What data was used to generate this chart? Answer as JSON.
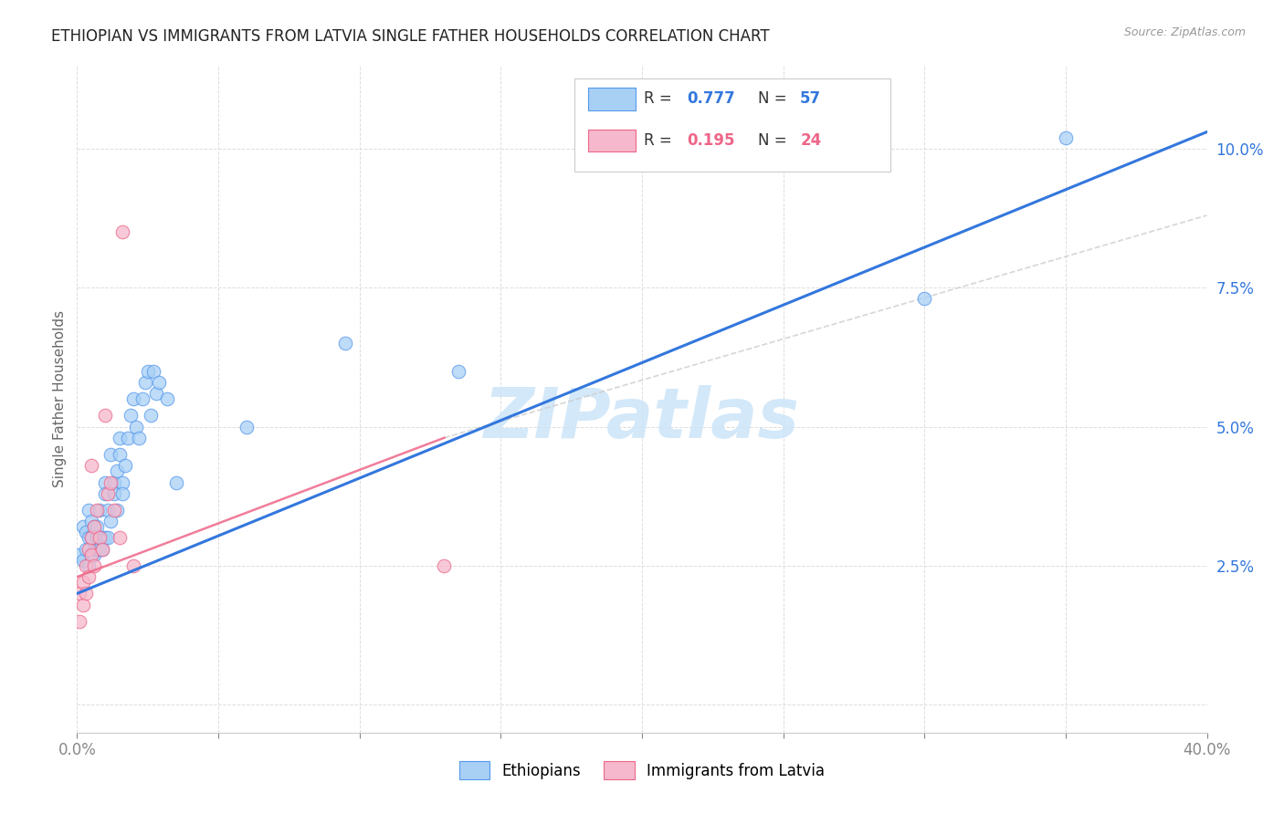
{
  "title": "ETHIOPIAN VS IMMIGRANTS FROM LATVIA SINGLE FATHER HOUSEHOLDS CORRELATION CHART",
  "source": "Source: ZipAtlas.com",
  "ylabel": "Single Father Households",
  "xlim": [
    0.0,
    0.4
  ],
  "ylim": [
    -0.005,
    0.115
  ],
  "xtick_positions": [
    0.0,
    0.05,
    0.1,
    0.15,
    0.2,
    0.25,
    0.3,
    0.35,
    0.4
  ],
  "xtick_labels": [
    "0.0%",
    "",
    "",
    "",
    "",
    "",
    "",
    "",
    "40.0%"
  ],
  "ytick_positions": [
    0.0,
    0.025,
    0.05,
    0.075,
    0.1
  ],
  "ytick_labels": [
    "",
    "2.5%",
    "5.0%",
    "7.5%",
    "10.0%"
  ],
  "blue_color": "#a8d0f5",
  "pink_color": "#f5b8cc",
  "blue_edge_color": "#5599ee",
  "pink_edge_color": "#ee6688",
  "blue_line_color": "#3377dd",
  "pink_line_color": "#ee6688",
  "gray_dash_color": "#cccccc",
  "watermark_color": "#cce5f8",
  "blue_scatter_x": [
    0.001,
    0.002,
    0.002,
    0.003,
    0.003,
    0.004,
    0.004,
    0.004,
    0.005,
    0.005,
    0.005,
    0.006,
    0.006,
    0.006,
    0.007,
    0.007,
    0.007,
    0.008,
    0.008,
    0.008,
    0.009,
    0.009,
    0.01,
    0.01,
    0.01,
    0.011,
    0.011,
    0.012,
    0.012,
    0.013,
    0.013,
    0.014,
    0.014,
    0.015,
    0.015,
    0.016,
    0.016,
    0.017,
    0.018,
    0.019,
    0.02,
    0.021,
    0.022,
    0.023,
    0.024,
    0.025,
    0.026,
    0.027,
    0.028,
    0.029,
    0.032,
    0.035,
    0.06,
    0.095,
    0.135,
    0.3,
    0.35
  ],
  "blue_scatter_y": [
    0.027,
    0.032,
    0.026,
    0.028,
    0.031,
    0.03,
    0.025,
    0.035,
    0.027,
    0.03,
    0.033,
    0.028,
    0.032,
    0.027,
    0.032,
    0.028,
    0.03,
    0.03,
    0.035,
    0.028,
    0.03,
    0.028,
    0.04,
    0.038,
    0.03,
    0.035,
    0.03,
    0.033,
    0.045,
    0.04,
    0.038,
    0.042,
    0.035,
    0.045,
    0.048,
    0.04,
    0.038,
    0.043,
    0.048,
    0.052,
    0.055,
    0.05,
    0.048,
    0.055,
    0.058,
    0.06,
    0.052,
    0.06,
    0.056,
    0.058,
    0.055,
    0.04,
    0.05,
    0.065,
    0.06,
    0.073,
    0.102
  ],
  "pink_scatter_x": [
    0.001,
    0.001,
    0.002,
    0.002,
    0.003,
    0.003,
    0.004,
    0.004,
    0.005,
    0.005,
    0.006,
    0.006,
    0.007,
    0.008,
    0.009,
    0.01,
    0.011,
    0.012,
    0.013,
    0.015,
    0.016,
    0.02,
    0.13,
    0.005
  ],
  "pink_scatter_y": [
    0.015,
    0.02,
    0.018,
    0.022,
    0.02,
    0.025,
    0.023,
    0.028,
    0.03,
    0.027,
    0.032,
    0.025,
    0.035,
    0.03,
    0.028,
    0.052,
    0.038,
    0.04,
    0.035,
    0.03,
    0.085,
    0.025,
    0.025,
    0.043
  ],
  "blue_line_x": [
    0.0,
    0.4
  ],
  "blue_line_y": [
    0.02,
    0.103
  ],
  "pink_line_x": [
    0.0,
    0.13
  ],
  "pink_line_y": [
    0.023,
    0.048
  ],
  "gray_line_x": [
    0.13,
    0.4
  ],
  "gray_line_y": [
    0.048,
    0.088
  ]
}
